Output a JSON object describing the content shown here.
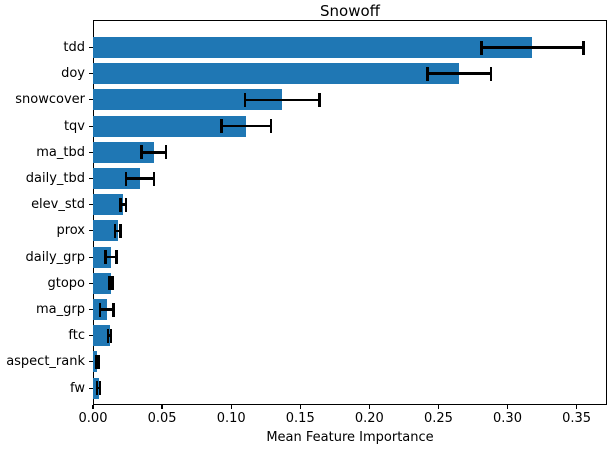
{
  "chart_data": {
    "type": "bar",
    "orientation": "horizontal",
    "title": "Snowoff",
    "xlabel": "Mean Feature Importance",
    "ylabel": "",
    "categories": [
      "tdd",
      "doy",
      "snowcover",
      "tqv",
      "ma_tbd",
      "daily_tbd",
      "elev_std",
      "prox",
      "daily_grp",
      "gtopo",
      "ma_grp",
      "ftc",
      "aspect_rank",
      "fw"
    ],
    "values": [
      0.318,
      0.265,
      0.137,
      0.111,
      0.044,
      0.034,
      0.022,
      0.018,
      0.013,
      0.013,
      0.01,
      0.012,
      0.003,
      0.004
    ],
    "errors": [
      0.037,
      0.023,
      0.027,
      0.018,
      0.009,
      0.01,
      0.002,
      0.002,
      0.004,
      0.001,
      0.005,
      0.001,
      0.001,
      0.001
    ],
    "x_tick_labels": [
      "0.00",
      "0.05",
      "0.10",
      "0.15",
      "0.20",
      "0.25",
      "0.30",
      "0.35"
    ],
    "x_tick_values": [
      0.0,
      0.05,
      0.1,
      0.15,
      0.2,
      0.25,
      0.3,
      0.35
    ],
    "xlim": [
      0,
      0.372
    ],
    "grid": false,
    "legend": "none",
    "bar_color": "#1f77b4",
    "error_bar_color": "#000000",
    "axis_color": "#000000",
    "background_color": "#ffffff"
  }
}
